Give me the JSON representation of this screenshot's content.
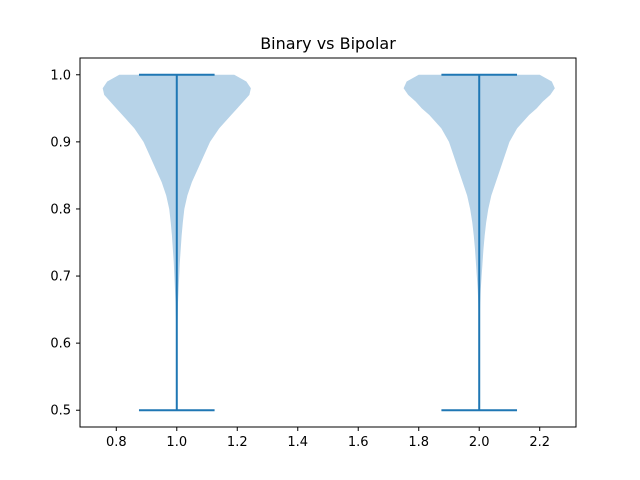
{
  "chart_data": {
    "type": "violin",
    "title": "Binary vs Bipolar",
    "xlabel": "",
    "ylabel": "",
    "xlim": [
      0.68,
      2.32
    ],
    "ylim": [
      0.475,
      1.025
    ],
    "xticks": [
      0.8,
      1.0,
      1.2,
      1.4,
      1.6,
      1.8,
      2.0,
      2.2
    ],
    "xtick_labels": [
      "0.8",
      "1.0",
      "1.2",
      "1.4",
      "1.6",
      "1.8",
      "2.0",
      "2.2"
    ],
    "yticks": [
      0.5,
      0.6,
      0.7,
      0.8,
      0.9,
      1.0
    ],
    "ytick_labels": [
      "0.5",
      "0.6",
      "0.7",
      "0.8",
      "0.9",
      "1.0"
    ],
    "grid": false,
    "colors": {
      "body": "#b7d3e8",
      "lines": "#1f77b4"
    },
    "series": [
      {
        "position": 1.0,
        "min": 0.5,
        "max": 1.0,
        "profile": [
          [
            1.0,
            0.19
          ],
          [
            0.99,
            0.23
          ],
          [
            0.98,
            0.245
          ],
          [
            0.97,
            0.24
          ],
          [
            0.96,
            0.22
          ],
          [
            0.95,
            0.2
          ],
          [
            0.94,
            0.18
          ],
          [
            0.92,
            0.14
          ],
          [
            0.9,
            0.11
          ],
          [
            0.88,
            0.09
          ],
          [
            0.86,
            0.07
          ],
          [
            0.84,
            0.05
          ],
          [
            0.82,
            0.035
          ],
          [
            0.8,
            0.025
          ],
          [
            0.78,
            0.02
          ],
          [
            0.76,
            0.016
          ],
          [
            0.74,
            0.013
          ],
          [
            0.72,
            0.01
          ],
          [
            0.7,
            0.008
          ],
          [
            0.68,
            0.006
          ],
          [
            0.66,
            0.004
          ],
          [
            0.64,
            0.003
          ],
          [
            0.62,
            0.002
          ],
          [
            0.6,
            0.0015
          ],
          [
            0.58,
            0.001
          ],
          [
            0.55,
            0.0005
          ],
          [
            0.5,
            0.0003
          ]
        ]
      },
      {
        "position": 2.0,
        "min": 0.5,
        "max": 1.0,
        "profile": [
          [
            1.0,
            0.2
          ],
          [
            0.99,
            0.24
          ],
          [
            0.98,
            0.25
          ],
          [
            0.97,
            0.235
          ],
          [
            0.96,
            0.21
          ],
          [
            0.95,
            0.19
          ],
          [
            0.94,
            0.165
          ],
          [
            0.92,
            0.125
          ],
          [
            0.9,
            0.1
          ],
          [
            0.88,
            0.085
          ],
          [
            0.86,
            0.07
          ],
          [
            0.84,
            0.055
          ],
          [
            0.82,
            0.04
          ],
          [
            0.8,
            0.03
          ],
          [
            0.78,
            0.023
          ],
          [
            0.76,
            0.018
          ],
          [
            0.74,
            0.014
          ],
          [
            0.72,
            0.011
          ],
          [
            0.7,
            0.008
          ],
          [
            0.68,
            0.005
          ],
          [
            0.66,
            0.003
          ],
          [
            0.64,
            0.002
          ],
          [
            0.6,
            0.001
          ],
          [
            0.55,
            0.0005
          ],
          [
            0.5,
            0.0003
          ]
        ]
      }
    ]
  }
}
